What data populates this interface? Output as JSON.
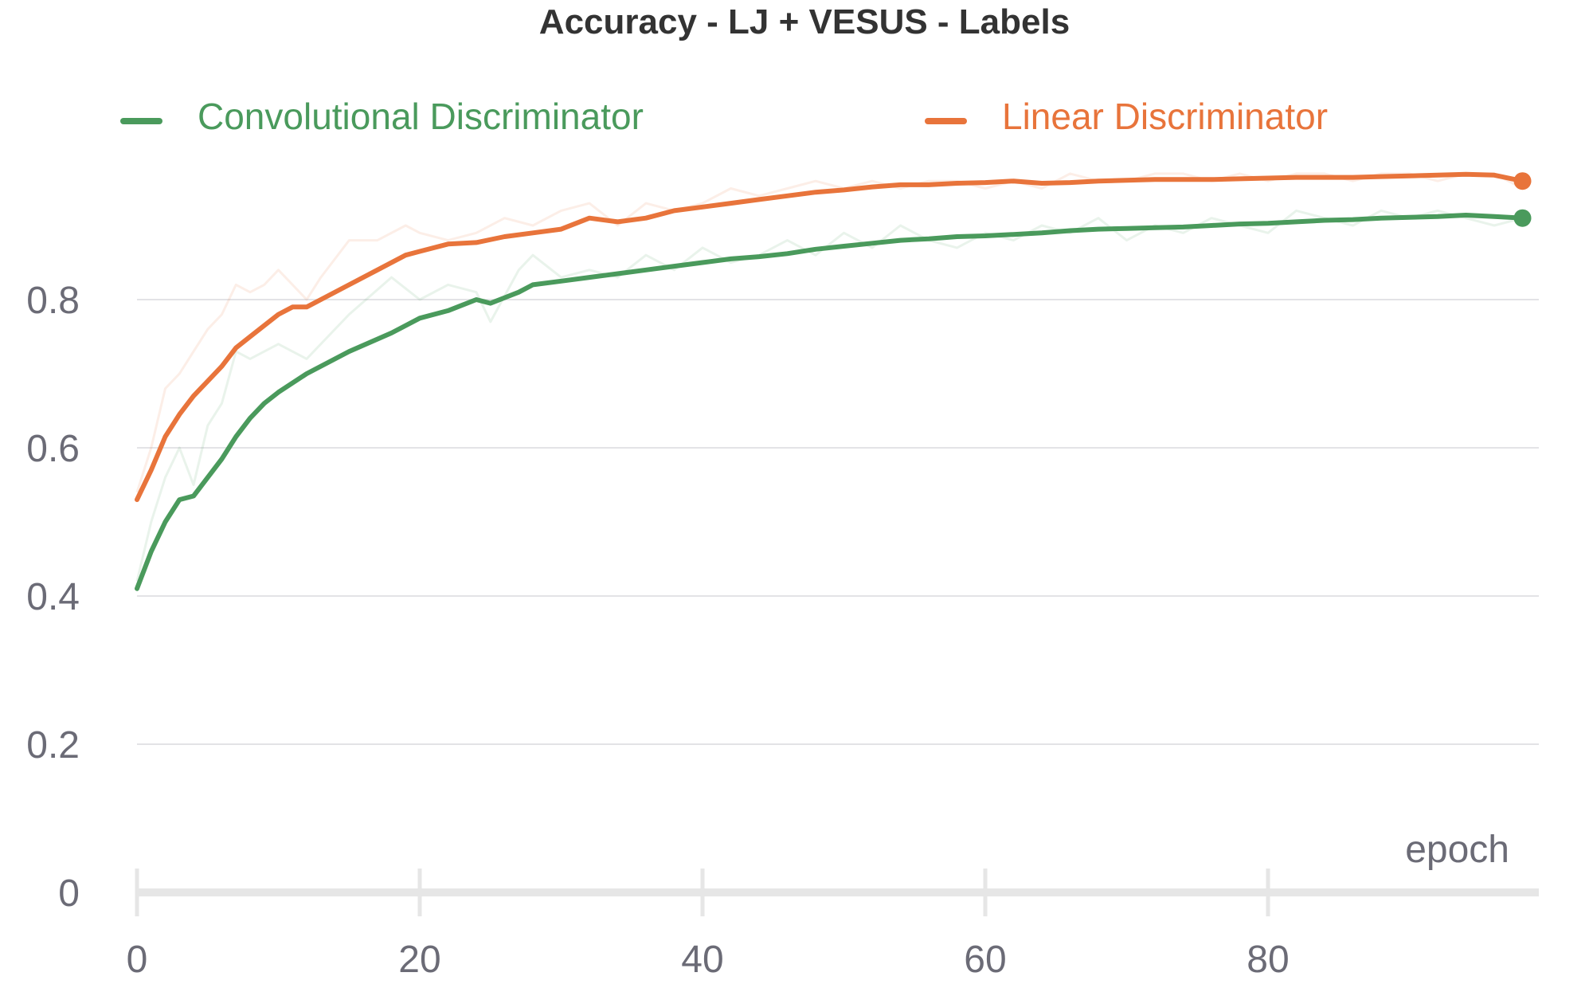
{
  "chart_data": {
    "type": "line",
    "title": "Accuracy - LJ + VESUS - Labels",
    "xlabel": "epoch",
    "ylabel": "",
    "xlim": [
      0,
      99
    ],
    "ylim": [
      0,
      1.0
    ],
    "x_ticks": [
      "0",
      "20",
      "40",
      "60",
      "80"
    ],
    "x_tick_values": [
      0,
      20,
      40,
      60,
      80
    ],
    "y_ticks": [
      "0",
      "0.2",
      "0.4",
      "0.6",
      "0.8"
    ],
    "y_tick_values": [
      0,
      0.2,
      0.4,
      0.6,
      0.8
    ],
    "grid": true,
    "legend_position": "top",
    "series": [
      {
        "name": "Convolutional Discriminator",
        "color": "#4a9a5c",
        "smoothed_x": [
          0,
          1,
          2,
          3,
          4,
          5,
          6,
          7,
          8,
          9,
          10,
          12,
          15,
          18,
          20,
          22,
          24,
          25,
          27,
          28,
          30,
          32,
          34,
          36,
          38,
          40,
          42,
          44,
          46,
          48,
          50,
          52,
          54,
          56,
          58,
          60,
          62,
          64,
          66,
          68,
          70,
          72,
          74,
          76,
          78,
          80,
          82,
          84,
          86,
          88,
          90,
          92,
          94,
          96,
          98
        ],
        "smoothed_y": [
          0.41,
          0.46,
          0.5,
          0.53,
          0.535,
          0.56,
          0.585,
          0.615,
          0.64,
          0.66,
          0.675,
          0.7,
          0.73,
          0.755,
          0.775,
          0.785,
          0.8,
          0.795,
          0.81,
          0.82,
          0.825,
          0.83,
          0.835,
          0.84,
          0.845,
          0.85,
          0.855,
          0.858,
          0.862,
          0.868,
          0.872,
          0.876,
          0.88,
          0.882,
          0.885,
          0.886,
          0.888,
          0.89,
          0.893,
          0.895,
          0.896,
          0.897,
          0.898,
          0.9,
          0.902,
          0.903,
          0.905,
          0.907,
          0.908,
          0.91,
          0.911,
          0.912,
          0.914,
          0.912,
          0.91
        ],
        "raw_y": [
          0.42,
          0.5,
          0.56,
          0.6,
          0.55,
          0.63,
          0.66,
          0.73,
          0.72,
          0.73,
          0.74,
          0.72,
          0.78,
          0.83,
          0.8,
          0.82,
          0.81,
          0.77,
          0.84,
          0.86,
          0.83,
          0.84,
          0.83,
          0.86,
          0.84,
          0.87,
          0.85,
          0.86,
          0.88,
          0.86,
          0.89,
          0.87,
          0.9,
          0.88,
          0.87,
          0.89,
          0.88,
          0.9,
          0.89,
          0.91,
          0.88,
          0.9,
          0.89,
          0.91,
          0.9,
          0.89,
          0.92,
          0.91,
          0.9,
          0.92,
          0.91,
          0.92,
          0.91,
          0.9,
          0.91
        ]
      },
      {
        "name": "Linear Discriminator",
        "color": "#e8743b",
        "smoothed_x": [
          0,
          1,
          2,
          3,
          4,
          5,
          6,
          7,
          8,
          9,
          10,
          11,
          12,
          13,
          15,
          17,
          19,
          20,
          22,
          24,
          26,
          28,
          30,
          32,
          34,
          36,
          38,
          40,
          42,
          44,
          46,
          48,
          50,
          52,
          54,
          56,
          58,
          60,
          62,
          64,
          66,
          68,
          70,
          72,
          74,
          76,
          78,
          80,
          82,
          84,
          86,
          88,
          90,
          92,
          94,
          96,
          98
        ],
        "smoothed_y": [
          0.53,
          0.57,
          0.615,
          0.645,
          0.67,
          0.69,
          0.71,
          0.735,
          0.75,
          0.765,
          0.78,
          0.79,
          0.79,
          0.8,
          0.82,
          0.84,
          0.86,
          0.865,
          0.875,
          0.877,
          0.885,
          0.89,
          0.895,
          0.91,
          0.905,
          0.91,
          0.92,
          0.925,
          0.93,
          0.935,
          0.94,
          0.945,
          0.948,
          0.952,
          0.955,
          0.955,
          0.957,
          0.958,
          0.96,
          0.957,
          0.958,
          0.96,
          0.961,
          0.962,
          0.962,
          0.962,
          0.963,
          0.964,
          0.965,
          0.965,
          0.965,
          0.966,
          0.967,
          0.968,
          0.969,
          0.968,
          0.96
        ],
        "raw_y": [
          0.54,
          0.6,
          0.68,
          0.7,
          0.73,
          0.76,
          0.78,
          0.82,
          0.81,
          0.82,
          0.84,
          0.82,
          0.8,
          0.83,
          0.88,
          0.88,
          0.9,
          0.89,
          0.88,
          0.89,
          0.91,
          0.9,
          0.92,
          0.93,
          0.9,
          0.93,
          0.92,
          0.93,
          0.95,
          0.94,
          0.95,
          0.96,
          0.95,
          0.96,
          0.95,
          0.96,
          0.96,
          0.95,
          0.96,
          0.95,
          0.97,
          0.96,
          0.96,
          0.97,
          0.97,
          0.96,
          0.97,
          0.96,
          0.97,
          0.97,
          0.96,
          0.97,
          0.97,
          0.96,
          0.97,
          0.97,
          0.95
        ]
      }
    ]
  }
}
